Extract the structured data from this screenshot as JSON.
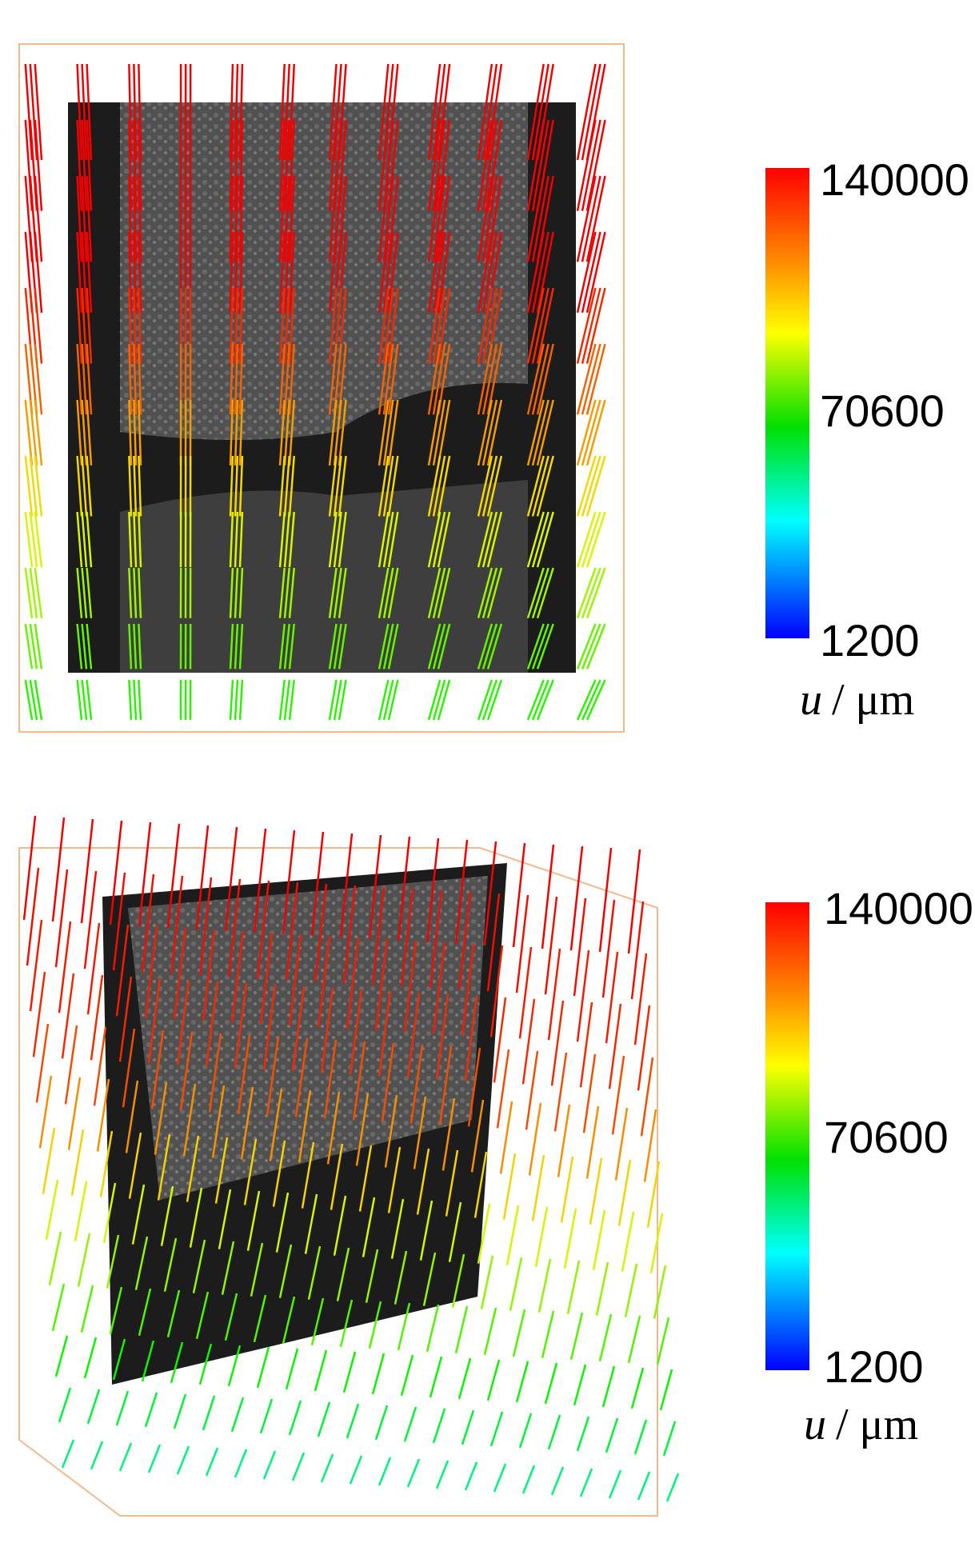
{
  "panels": [
    {
      "colorbar": {
        "max_label": "140000",
        "mid_label": "70600",
        "min_label": "1200",
        "axis_var": "u",
        "axis_unit": "/ μm"
      }
    },
    {
      "colorbar": {
        "max_label": "140000",
        "mid_label": "70600",
        "min_label": "1200",
        "axis_var": "u",
        "axis_unit": "/ μm"
      }
    }
  ]
}
